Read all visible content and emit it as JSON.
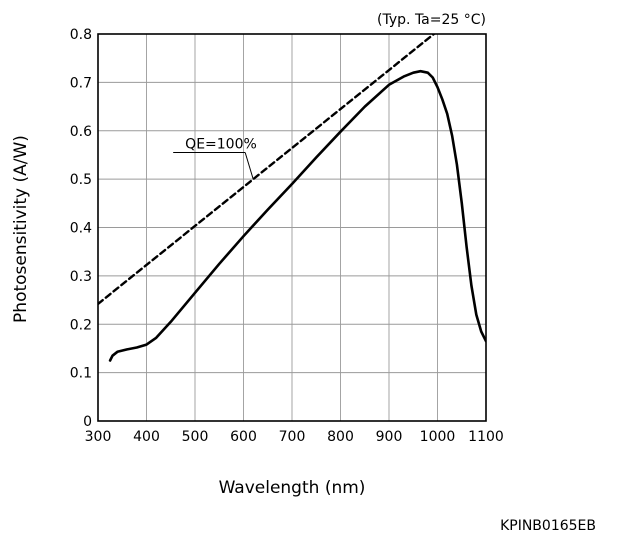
{
  "chart_data": {
    "type": "line",
    "title": "",
    "condition_note": "(Typ. Ta=25 °C)",
    "xlabel": "Wavelength (nm)",
    "ylabel": "Photosensitivity (A/W)",
    "xlim": [
      300,
      1100
    ],
    "ylim": [
      0,
      0.8
    ],
    "x_ticks": [
      300,
      400,
      500,
      600,
      700,
      800,
      900,
      1000,
      1100
    ],
    "y_ticks": [
      0,
      0.1,
      0.2,
      0.3,
      0.4,
      0.5,
      0.6,
      0.7,
      0.8
    ],
    "y_tick_labels": [
      "0",
      "0.1",
      "0.2",
      "0.3",
      "0.4",
      "0.5",
      "0.6",
      "0.7",
      "0.8"
    ],
    "grid": true,
    "series": [
      {
        "name": "",
        "style": "solid",
        "color": "#000000",
        "x": [
          325,
          330,
          340,
          360,
          380,
          400,
          420,
          450,
          500,
          550,
          600,
          650,
          700,
          750,
          800,
          850,
          900,
          930,
          950,
          965,
          980,
          990,
          1000,
          1010,
          1020,
          1030,
          1040,
          1050,
          1060,
          1070,
          1080,
          1090,
          1100
        ],
        "y": [
          0.125,
          0.135,
          0.143,
          0.148,
          0.152,
          0.158,
          0.172,
          0.205,
          0.265,
          0.325,
          0.382,
          0.437,
          0.49,
          0.545,
          0.598,
          0.65,
          0.695,
          0.712,
          0.72,
          0.723,
          0.72,
          0.71,
          0.69,
          0.665,
          0.635,
          0.59,
          0.53,
          0.45,
          0.36,
          0.28,
          0.22,
          0.185,
          0.165
        ]
      },
      {
        "name": "QE=100%",
        "style": "dashed",
        "color": "#000000",
        "x": [
          300,
          1000
        ],
        "y": [
          0.242,
          0.806
        ]
      }
    ],
    "annotations": [
      {
        "text": "QE=100%",
        "x": 455,
        "y": 0.555,
        "target_x": 620,
        "target_y": 0.5
      }
    ],
    "figure_code": "KPINB0165EB"
  }
}
